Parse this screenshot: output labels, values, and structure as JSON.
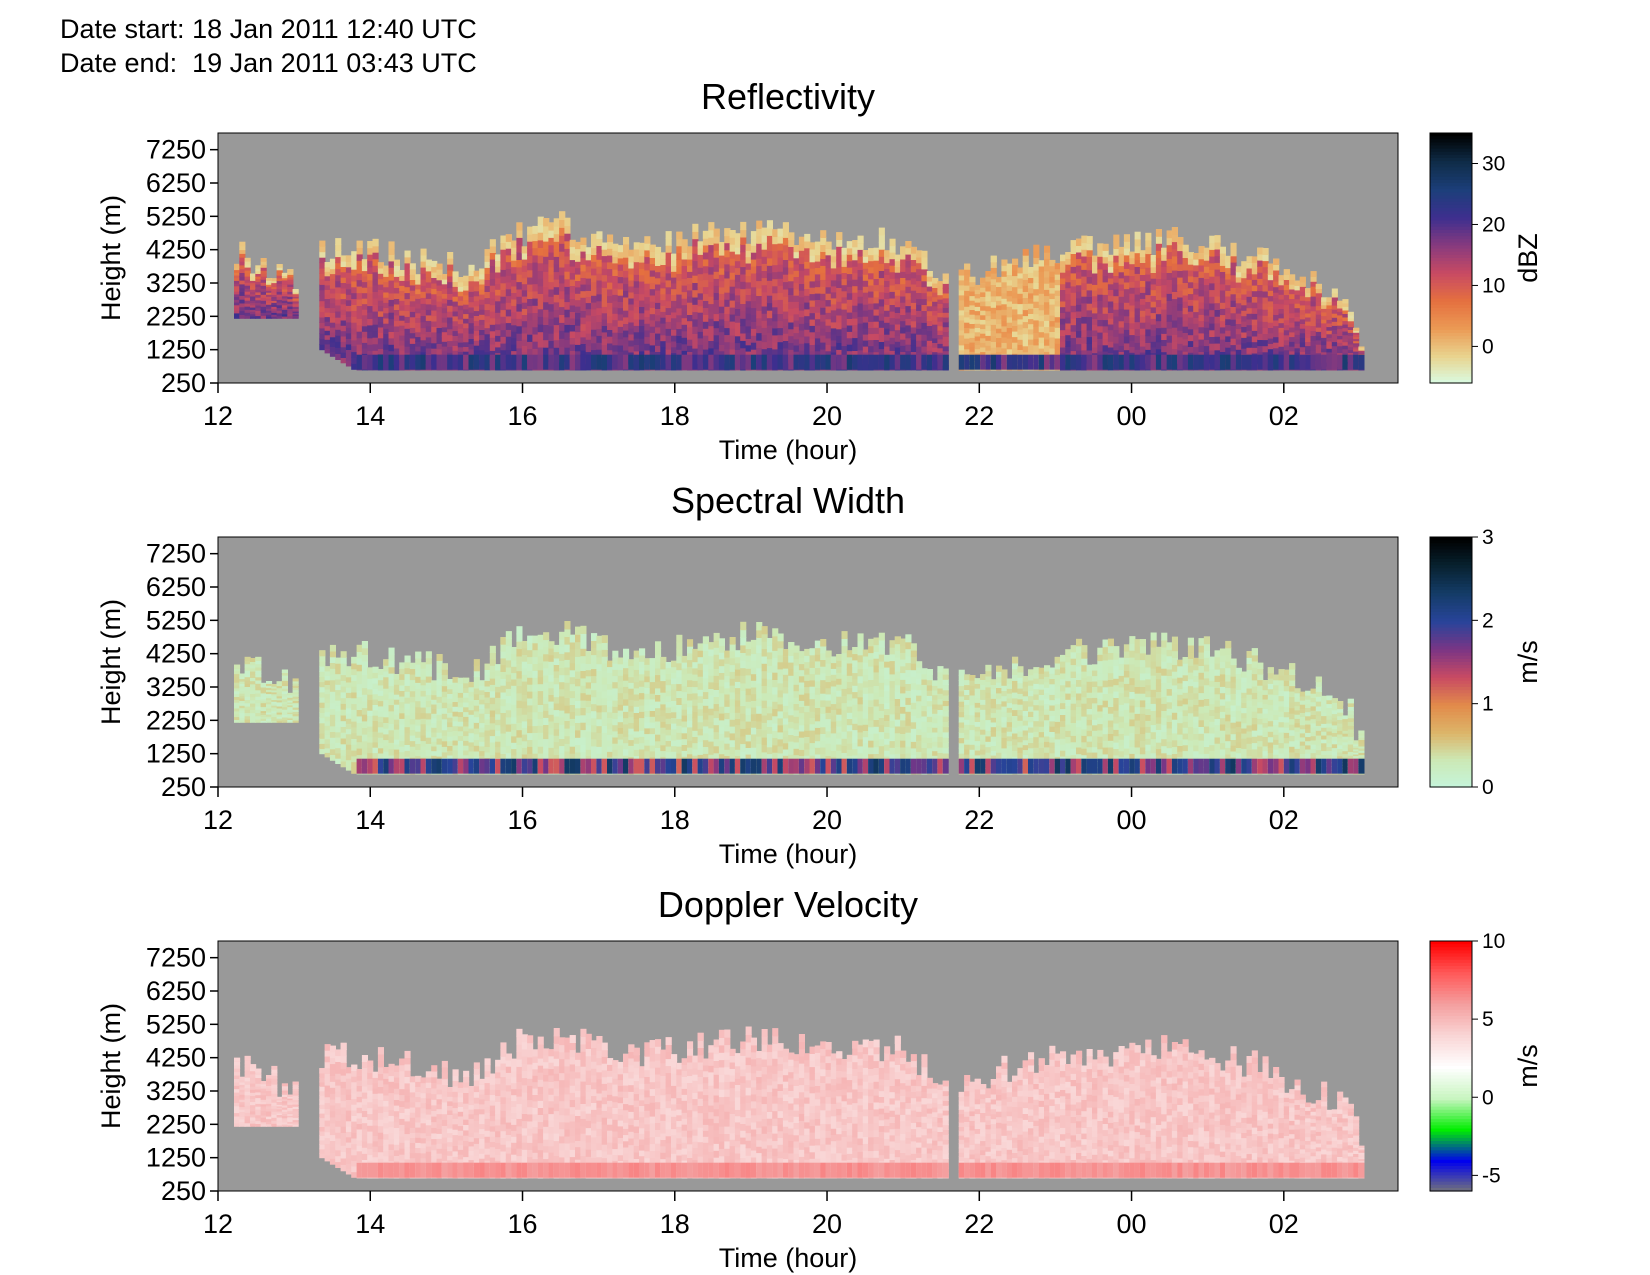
{
  "header": {
    "date_start_label": "Date start:",
    "date_start_value": "18 Jan 2011 12:40 UTC",
    "date_end_label": "Date end:",
    "date_end_value": "19 Jan 2011 03:43 UTC"
  },
  "colors": {
    "no_data": "#999999",
    "frame": "#000000",
    "reflectivity_ramp": [
      "#d8fde6",
      "#e9d48f",
      "#eb9a55",
      "#e5703f",
      "#c84a63",
      "#873a7e",
      "#3d2f8f",
      "#1c3f7a",
      "#0f2c48",
      "#000000"
    ],
    "spectral_width_ramp": [
      "#c4f5dc",
      "#cce9b6",
      "#dcb569",
      "#e28a4a",
      "#c84a63",
      "#7a3585",
      "#28449a",
      "#143c68",
      "#082230",
      "#000000"
    ],
    "doppler_ramp": [
      "#777777",
      "#0000ee",
      "#00ee00",
      "#c8f5c0",
      "#ffffff",
      "#f9d6d6",
      "#f4a0a0",
      "#ff5a5a",
      "#ff0000"
    ]
  },
  "chart_data": [
    {
      "type": "heatmap",
      "title": "Reflectivity",
      "xlabel": "Time (hour)",
      "ylabel": "Height (m)",
      "x_range_hours": [
        "12:00",
        "03:30"
      ],
      "x_ticks": [
        "12",
        "14",
        "16",
        "18",
        "20",
        "22",
        "00",
        "02"
      ],
      "y_ticks": [
        7250,
        6250,
        5250,
        4250,
        3250,
        2250,
        1250,
        250
      ],
      "ylim": [
        250,
        7750
      ],
      "colorbar": {
        "label": "dBZ",
        "ticks": [
          0,
          10,
          20,
          30
        ],
        "range": [
          -6,
          35
        ]
      },
      "echo_top_profile": {
        "time_hours": [
          12.2,
          12.9,
          13.3,
          13.8,
          14.5,
          15.3,
          15.8,
          16.5,
          17.0,
          17.6,
          18.5,
          19.0,
          20.0,
          21.0,
          21.6,
          22.3,
          23.0,
          23.7,
          24.5,
          25.5,
          26.2,
          26.8,
          27.0
        ],
        "top_m": [
          4200,
          3300,
          4300,
          4300,
          4000,
          3600,
          4600,
          5000,
          4500,
          4300,
          4700,
          4800,
          4600,
          4500,
          3300,
          3900,
          4200,
          4400,
          4500,
          4100,
          3400,
          2800,
          1500
        ]
      }
    },
    {
      "type": "heatmap",
      "title": "Spectral Width",
      "xlabel": "Time (hour)",
      "ylabel": "Height (m)",
      "x_range_hours": [
        "12:00",
        "03:30"
      ],
      "x_ticks": [
        "12",
        "14",
        "16",
        "18",
        "20",
        "22",
        "00",
        "02"
      ],
      "y_ticks": [
        7250,
        6250,
        5250,
        4250,
        3250,
        2250,
        1250,
        250
      ],
      "ylim": [
        250,
        7750
      ],
      "colorbar": {
        "label": "m/s",
        "ticks": [
          0,
          1,
          2,
          3
        ],
        "range": [
          0,
          3
        ]
      }
    },
    {
      "type": "heatmap",
      "title": "Doppler Velocity",
      "xlabel": "Time (hour)",
      "ylabel": "Height (m)",
      "x_range_hours": [
        "12:00",
        "03:30"
      ],
      "x_ticks": [
        "12",
        "14",
        "16",
        "18",
        "20",
        "22",
        "00",
        "02"
      ],
      "y_ticks": [
        7250,
        6250,
        5250,
        4250,
        3250,
        2250,
        1250,
        250
      ],
      "ylim": [
        250,
        7750
      ],
      "colorbar": {
        "label": "m/s",
        "ticks": [
          10,
          5,
          0,
          -5
        ],
        "range": [
          -6,
          10
        ]
      }
    }
  ]
}
